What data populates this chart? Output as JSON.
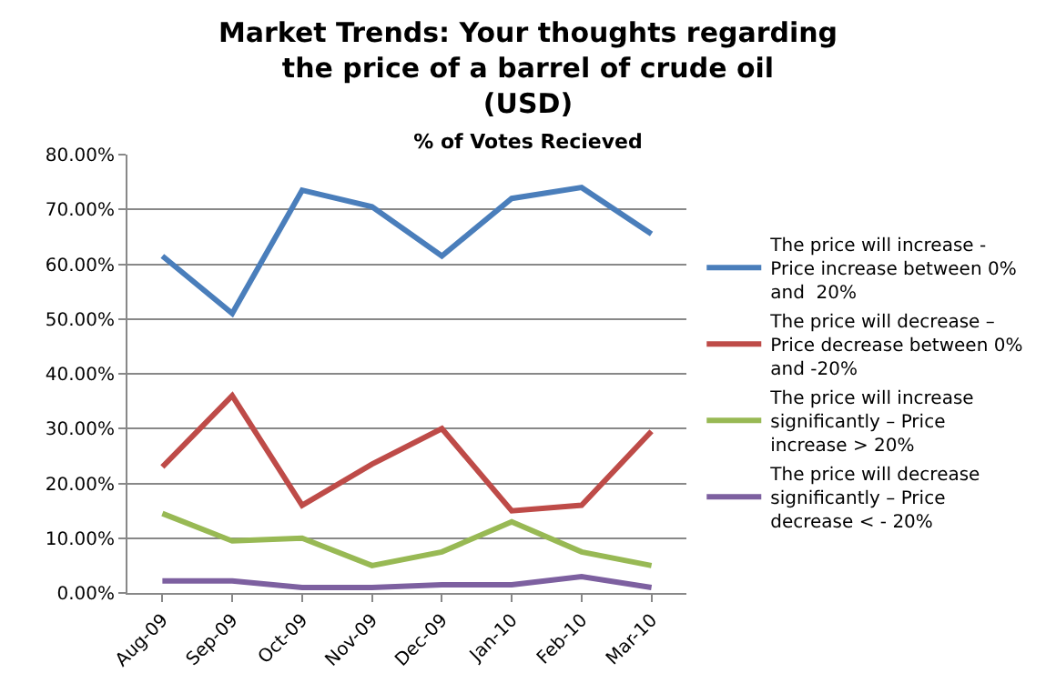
{
  "chart_data": {
    "type": "line",
    "title": "Market Trends: Your thoughts regarding the price of a barrel of crude oil (USD)",
    "subtitle": "% of Votes Recieved",
    "categories": [
      "Aug-09",
      "Sep-09",
      "Oct-09",
      "Nov-09",
      "Dec-09",
      "Jan-10",
      "Feb-10",
      "Mar-10"
    ],
    "series": [
      {
        "name": "The price will increase - Price increase between 0% and  20%",
        "color": "#4a7ebb",
        "values": [
          61.5,
          51,
          73.5,
          70.5,
          61.5,
          72,
          74,
          65.5
        ]
      },
      {
        "name": "The price will decrease – Price decrease between 0% and -20%",
        "color": "#be4b48",
        "values": [
          23,
          36,
          16,
          23.5,
          30,
          15,
          16,
          29.5
        ]
      },
      {
        "name": "The price will increase significantly – Price increase > 20%",
        "color": "#98b954",
        "values": [
          14.5,
          9.5,
          10,
          5,
          7.5,
          13,
          7.5,
          5
        ]
      },
      {
        "name": "The price will decrease significantly – Price decrease < - 20%",
        "color": "#7d60a0",
        "values": [
          2.2,
          2.2,
          1,
          1,
          1.5,
          1.5,
          3,
          1
        ]
      }
    ],
    "ylim": [
      0,
      80
    ],
    "yticks": [
      {
        "value": 0,
        "label": "0.00%"
      },
      {
        "value": 10,
        "label": "10.00%"
      },
      {
        "value": 20,
        "label": "20.00%"
      },
      {
        "value": 30,
        "label": "30.00%"
      },
      {
        "value": 40,
        "label": "40.00%"
      },
      {
        "value": 50,
        "label": "50.00%"
      },
      {
        "value": 60,
        "label": "60.00%"
      },
      {
        "value": 70,
        "label": "70.00%"
      },
      {
        "value": 80,
        "label": "80.00%"
      }
    ],
    "grid": "y",
    "legend": "right",
    "marker": "none",
    "line_style": "solid"
  }
}
